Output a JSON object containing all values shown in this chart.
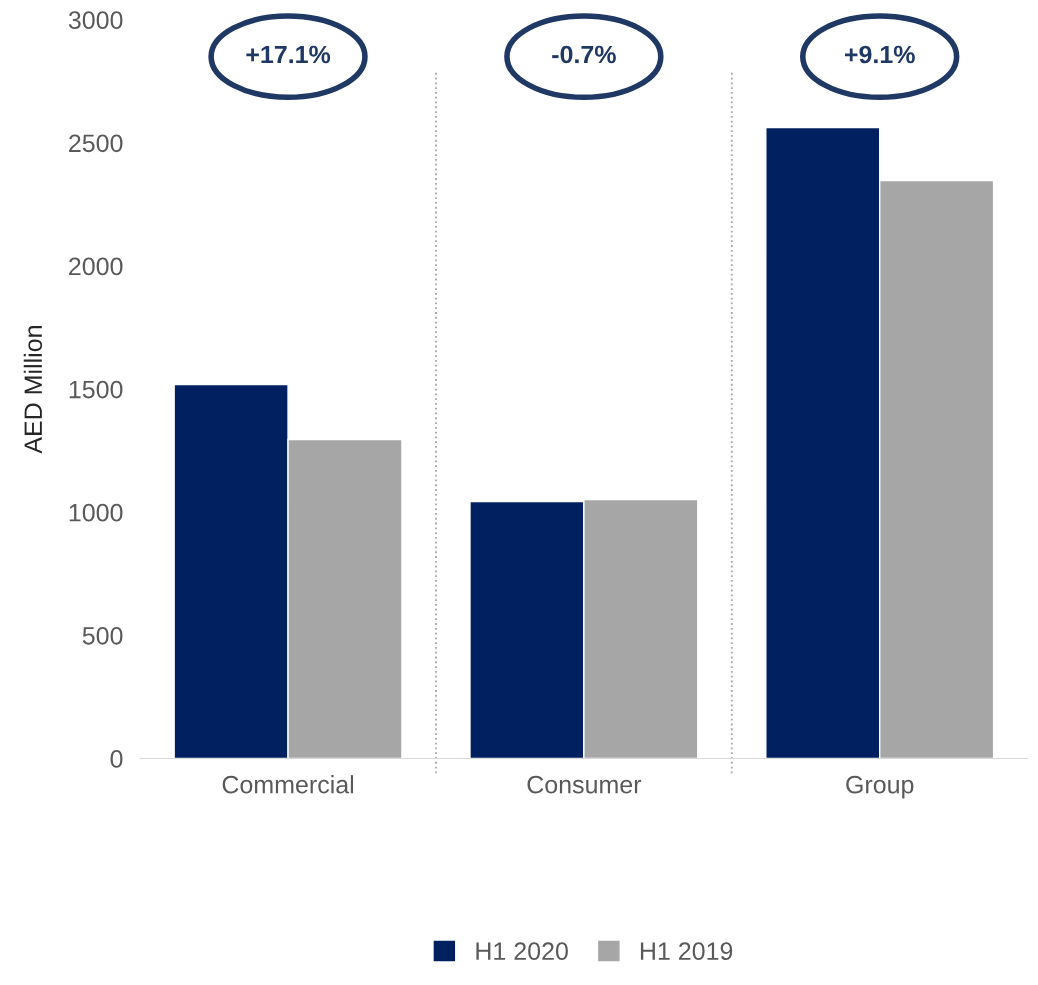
{
  "chart_data": {
    "type": "bar",
    "ylabel": "AED Million",
    "categories": [
      "Commercial",
      "Consumer",
      "Group"
    ],
    "series": [
      {
        "name": "H1 2020",
        "color": "#002060",
        "values": [
          1518,
          1043,
          2562
        ]
      },
      {
        "name": "H1 2019",
        "color": "#a6a6a6",
        "values": [
          1295,
          1051,
          2347
        ]
      }
    ],
    "ylim": [
      0,
      3000
    ],
    "yticks": [
      0,
      500,
      1000,
      1500,
      2000,
      2500,
      3000
    ],
    "grid": "x",
    "legend": "bottom",
    "annotations": [
      "+17.1%",
      "-0.7%",
      "+9.1%"
    ]
  }
}
